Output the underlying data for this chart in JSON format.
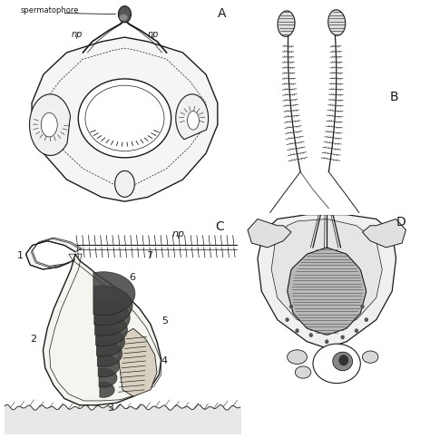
{
  "bg_color": "#ffffff",
  "lc": "#1a1a1a",
  "label_A": "A",
  "label_B": "B",
  "label_C": "C",
  "label_D": "D",
  "text_spermatophore": "spermatophore",
  "text_np": "np",
  "numbers_C": [
    "1",
    "2",
    "3",
    "4",
    "5",
    "6",
    "7"
  ],
  "font_size_label": 10,
  "font_size_small": 7,
  "fig_width": 4.74,
  "fig_height": 4.83,
  "dpi": 100
}
